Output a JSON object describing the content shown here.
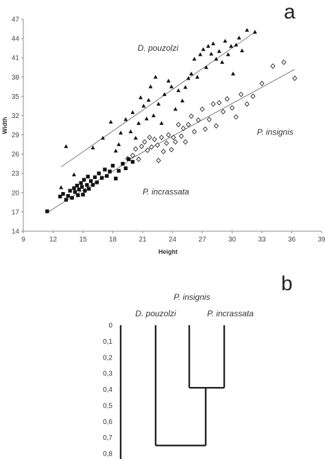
{
  "panels": {
    "a": "a",
    "b": "b"
  },
  "chart_data": [
    {
      "type": "scatter",
      "title": "",
      "xlabel": "Height",
      "ylabel": "Width",
      "xlim": [
        9,
        39
      ],
      "ylim": [
        14,
        47
      ],
      "xticks": [
        9,
        12,
        15,
        18,
        21,
        24,
        27,
        30,
        33,
        36,
        39
      ],
      "yticks": [
        14,
        17,
        20,
        23,
        26,
        29,
        32,
        35,
        38,
        41,
        44,
        47
      ],
      "grid": false,
      "series": [
        {
          "label": "D. pouzolzi",
          "marker": "triangle",
          "trend": [
            [
              12.8,
              24.0
            ],
            [
              32.3,
              45.0
            ]
          ],
          "points": [
            [
              12.8,
              20.8
            ],
            [
              13.3,
              27.2
            ],
            [
              14.1,
              22.8
            ],
            [
              16.0,
              27.0
            ],
            [
              17.0,
              28.5
            ],
            [
              17.8,
              31.0
            ],
            [
              18.3,
              26.5
            ],
            [
              18.6,
              27.5
            ],
            [
              18.8,
              29.3
            ],
            [
              19.3,
              31.4
            ],
            [
              19.8,
              29.5
            ],
            [
              20.0,
              32.5
            ],
            [
              20.3,
              28.5
            ],
            [
              20.6,
              30.8
            ],
            [
              20.8,
              34.8
            ],
            [
              21.1,
              33.5
            ],
            [
              21.4,
              31.5
            ],
            [
              21.6,
              34.4
            ],
            [
              21.8,
              36.5
            ],
            [
              22.1,
              32.0
            ],
            [
              22.3,
              38.0
            ],
            [
              22.6,
              33.8
            ],
            [
              22.9,
              30.8
            ],
            [
              23.2,
              35.3
            ],
            [
              23.6,
              37.4
            ],
            [
              23.9,
              36.5
            ],
            [
              24.3,
              33.0
            ],
            [
              24.6,
              35.9
            ],
            [
              25.0,
              34.3
            ],
            [
              25.3,
              36.4
            ],
            [
              25.6,
              37.8
            ],
            [
              25.9,
              38.5
            ],
            [
              26.2,
              40.8
            ],
            [
              26.5,
              38.0
            ],
            [
              26.8,
              41.5
            ],
            [
              27.1,
              42.3
            ],
            [
              27.4,
              39.5
            ],
            [
              27.6,
              42.8
            ],
            [
              27.9,
              41.6
            ],
            [
              28.1,
              43.2
            ],
            [
              28.4,
              40.8
            ],
            [
              28.7,
              42.0
            ],
            [
              29.0,
              40.3
            ],
            [
              29.3,
              43.6
            ],
            [
              29.6,
              41.5
            ],
            [
              29.9,
              42.8
            ],
            [
              30.1,
              38.5
            ],
            [
              30.4,
              43.0
            ],
            [
              30.7,
              44.1
            ],
            [
              31.0,
              42.1
            ],
            [
              31.5,
              45.3
            ],
            [
              32.3,
              45.0
            ]
          ]
        },
        {
          "label": "P. insignis",
          "marker": "diamond-open",
          "trend": [
            [
              19.5,
              25.0
            ],
            [
              36.3,
              39.2
            ]
          ],
          "points": [
            [
              19.5,
              25.3
            ],
            [
              20.0,
              25.8
            ],
            [
              20.3,
              26.8
            ],
            [
              20.6,
              25.2
            ],
            [
              20.9,
              27.2
            ],
            [
              21.2,
              27.9
            ],
            [
              21.5,
              26.6
            ],
            [
              21.7,
              28.6
            ],
            [
              21.9,
              27.1
            ],
            [
              22.2,
              28.3
            ],
            [
              22.5,
              27.4
            ],
            [
              22.6,
              25.0
            ],
            [
              22.9,
              28.6
            ],
            [
              23.1,
              26.4
            ],
            [
              23.4,
              27.7
            ],
            [
              23.6,
              29.0
            ],
            [
              23.9,
              26.7
            ],
            [
              24.1,
              28.6
            ],
            [
              24.3,
              27.9
            ],
            [
              24.6,
              30.6
            ],
            [
              24.9,
              28.8
            ],
            [
              25.1,
              30.0
            ],
            [
              25.3,
              27.9
            ],
            [
              25.6,
              30.6
            ],
            [
              25.9,
              31.9
            ],
            [
              26.2,
              29.5
            ],
            [
              26.6,
              31.3
            ],
            [
              27.0,
              33.0
            ],
            [
              27.3,
              29.9
            ],
            [
              27.7,
              31.4
            ],
            [
              28.1,
              33.8
            ],
            [
              28.4,
              30.4
            ],
            [
              28.7,
              34.0
            ],
            [
              29.1,
              32.6
            ],
            [
              29.5,
              34.6
            ],
            [
              30.0,
              33.2
            ],
            [
              30.4,
              31.8
            ],
            [
              30.9,
              35.3
            ],
            [
              31.5,
              33.8
            ],
            [
              32.1,
              35.0
            ],
            [
              33.0,
              37.0
            ],
            [
              34.1,
              39.7
            ],
            [
              35.2,
              40.3
            ],
            [
              36.3,
              37.8
            ]
          ]
        },
        {
          "label": "P. incrassata",
          "marker": "square",
          "trend": [
            [
              11.4,
              16.9
            ],
            [
              19.5,
              24.8
            ]
          ],
          "points": [
            [
              11.4,
              17.1
            ],
            [
              12.7,
              19.4
            ],
            [
              13.0,
              19.8
            ],
            [
              13.3,
              18.9
            ],
            [
              13.5,
              19.5
            ],
            [
              13.7,
              20.3
            ],
            [
              13.9,
              19.2
            ],
            [
              14.1,
              20.7
            ],
            [
              14.2,
              20.1
            ],
            [
              14.4,
              21.1
            ],
            [
              14.5,
              19.6
            ],
            [
              14.6,
              20.5
            ],
            [
              14.8,
              21.5
            ],
            [
              14.9,
              20.9
            ],
            [
              15.0,
              19.7
            ],
            [
              15.1,
              22.0
            ],
            [
              15.2,
              20.3
            ],
            [
              15.4,
              21.2
            ],
            [
              15.5,
              22.5
            ],
            [
              15.6,
              20.6
            ],
            [
              15.8,
              21.8
            ],
            [
              16.0,
              21.2
            ],
            [
              16.2,
              22.4
            ],
            [
              16.4,
              21.6
            ],
            [
              16.6,
              23.0
            ],
            [
              16.9,
              22.3
            ],
            [
              17.2,
              23.6
            ],
            [
              17.4,
              22.6
            ],
            [
              17.7,
              23.3
            ],
            [
              18.0,
              24.2
            ],
            [
              18.3,
              22.2
            ],
            [
              18.6,
              23.4
            ],
            [
              19.0,
              24.5
            ],
            [
              19.3,
              23.8
            ],
            [
              19.6,
              25.2
            ],
            [
              20.0,
              24.8
            ]
          ]
        }
      ],
      "annotations": [
        {
          "text": "D. pouzolzi",
          "x": 20.5,
          "y": 42.1
        },
        {
          "text": "P. insignis",
          "x": 32.5,
          "y": 29.0
        },
        {
          "text": "P. incrassata",
          "x": 21.0,
          "y": 19.7
        }
      ]
    },
    {
      "type": "dendrogram",
      "yticks": [
        "0",
        "0,1",
        "0,2",
        "0,3",
        "0,4",
        "0,5",
        "0,6",
        "0,7",
        "0,8"
      ],
      "ylim": [
        0,
        0.8
      ],
      "leaves": [
        "D. pouzolzi",
        "P. insignis",
        "P. incrassata"
      ],
      "merges": [
        {
          "join": [
            "P. insignis",
            "P. incrassata"
          ],
          "height": 0.39
        },
        {
          "join": [
            "D. pouzolzi",
            "cluster-1"
          ],
          "height": 0.75
        }
      ]
    }
  ]
}
